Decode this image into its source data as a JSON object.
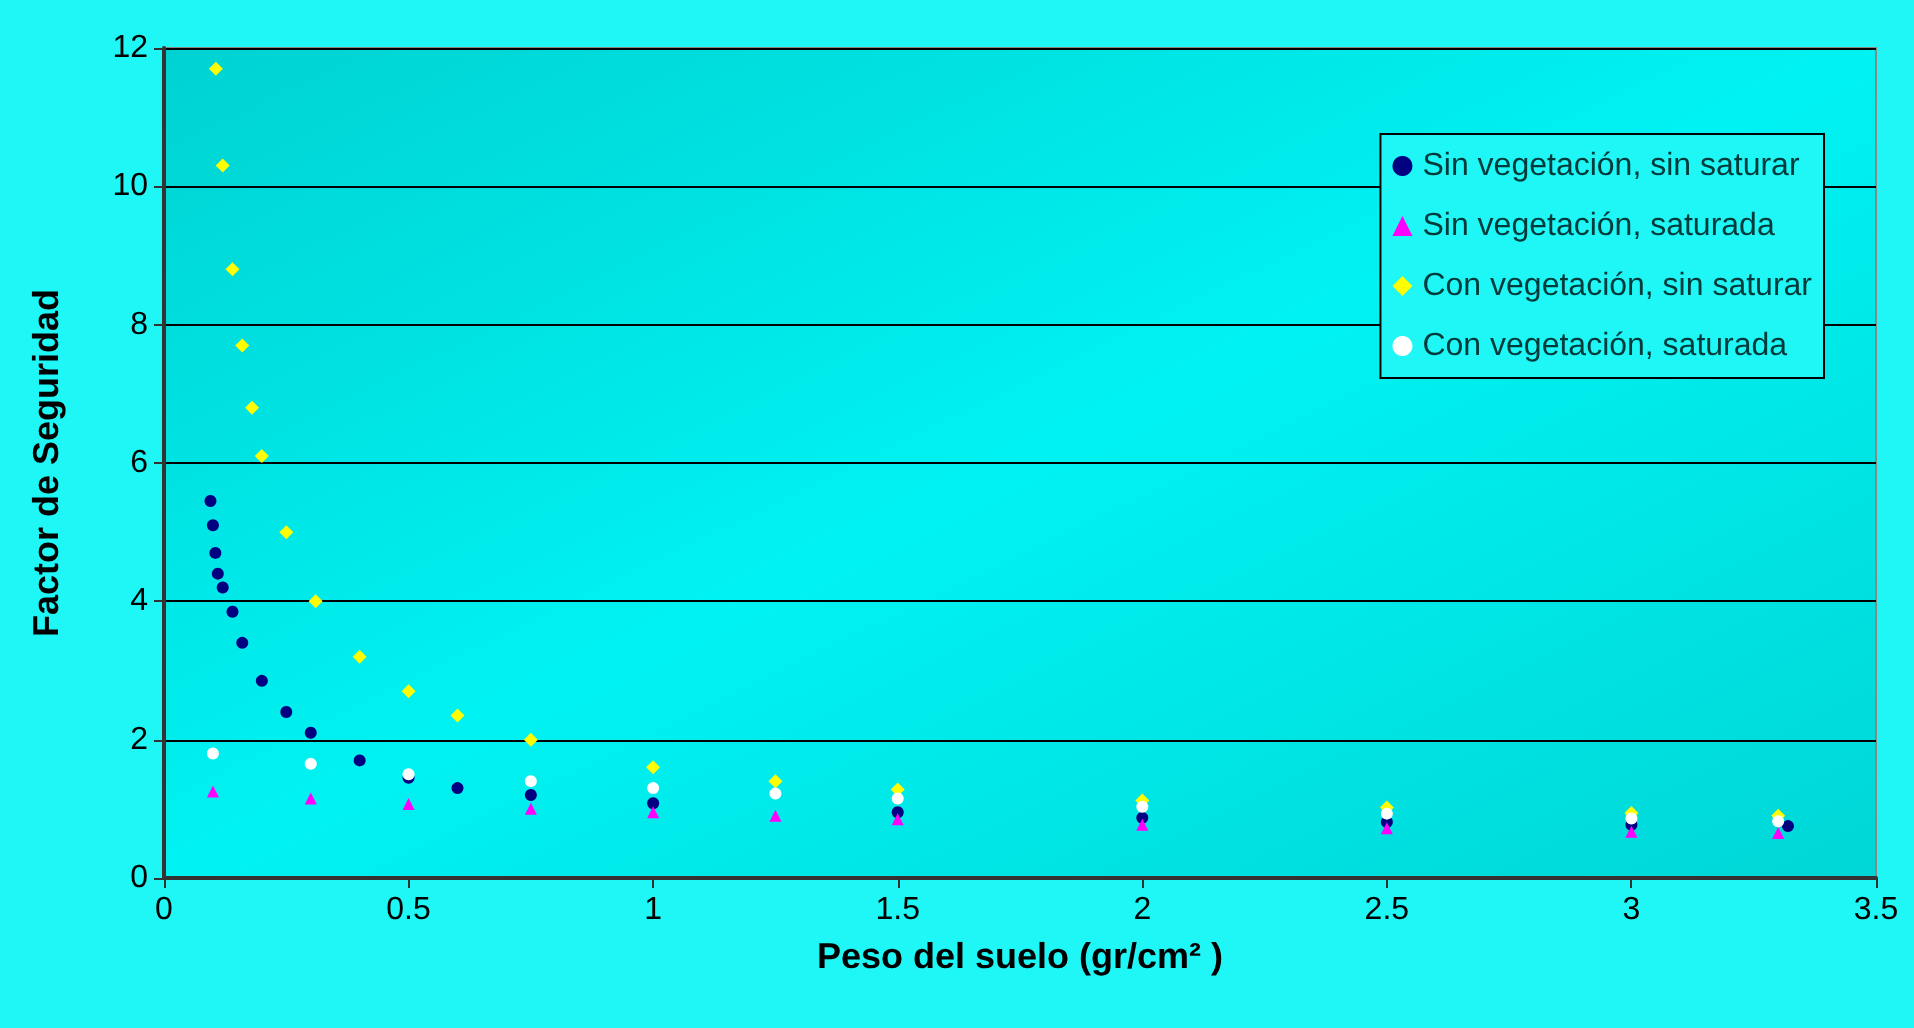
{
  "chart_data": {
    "type": "scatter",
    "xlabel": "Peso del suelo (gr/cm² )",
    "ylabel": "Factor de Seguridad",
    "xlim": [
      0,
      3.5
    ],
    "xticks": [
      0,
      0.5,
      1,
      1.5,
      2,
      2.5,
      3,
      3.5
    ],
    "ylim": [
      0,
      12
    ],
    "yticks": [
      0,
      2,
      4,
      6,
      8,
      10,
      12
    ],
    "grid": "y",
    "legend": "top right",
    "series": [
      {
        "name": "Sin vegetación, sin saturar",
        "color": "#000080",
        "marker": "circle",
        "x": [
          0.095,
          0.1,
          0.105,
          0.11,
          0.12,
          0.14,
          0.16,
          0.2,
          0.25,
          0.3,
          0.4,
          0.5,
          0.6,
          0.75,
          1.0,
          1.5,
          2.0,
          2.5,
          3.0,
          3.32
        ],
        "values": [
          5.45,
          5.1,
          4.7,
          4.4,
          4.2,
          3.85,
          3.4,
          2.85,
          2.4,
          2.1,
          1.7,
          1.45,
          1.3,
          1.2,
          1.08,
          0.95,
          0.87,
          0.81,
          0.77,
          0.75
        ]
      },
      {
        "name": "Sin vegetación, saturada",
        "color": "#ff00ff",
        "marker": "triangle",
        "x": [
          0.1,
          0.3,
          0.5,
          0.75,
          1.0,
          1.25,
          1.5,
          2.0,
          2.5,
          3.0,
          3.3
        ],
        "values": [
          1.25,
          1.15,
          1.07,
          1.0,
          0.95,
          0.9,
          0.85,
          0.77,
          0.72,
          0.67,
          0.65
        ]
      },
      {
        "name": "Con vegetación, sin saturar",
        "color": "#ffff00",
        "marker": "diamond",
        "x": [
          0.106,
          0.12,
          0.14,
          0.16,
          0.18,
          0.2,
          0.25,
          0.31,
          0.4,
          0.5,
          0.6,
          0.75,
          1.0,
          1.25,
          1.5,
          2.0,
          2.5,
          3.0,
          3.3
        ],
        "values": [
          11.7,
          10.3,
          8.8,
          7.7,
          6.8,
          6.1,
          5.0,
          4.0,
          3.2,
          2.7,
          2.35,
          2.0,
          1.6,
          1.4,
          1.28,
          1.12,
          1.02,
          0.94,
          0.9
        ]
      },
      {
        "name": "Con vegetación, saturada",
        "color": "#ffffff",
        "marker": "circle",
        "x": [
          0.1,
          0.3,
          0.5,
          0.75,
          1.0,
          1.25,
          1.5,
          2.0,
          2.5,
          3.0,
          3.3
        ],
        "values": [
          1.8,
          1.65,
          1.5,
          1.4,
          1.3,
          1.22,
          1.15,
          1.03,
          0.93,
          0.86,
          0.82
        ]
      }
    ]
  }
}
